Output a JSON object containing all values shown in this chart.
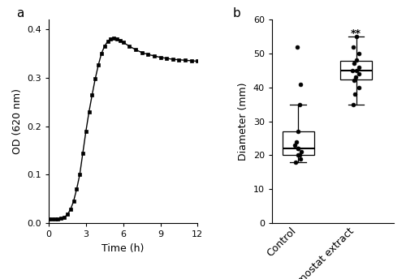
{
  "panel_a": {
    "xlabel": "Time (h)",
    "ylabel": "OD (620 nm)",
    "xlim": [
      0,
      12
    ],
    "ylim": [
      0,
      0.4
    ],
    "yticks": [
      0.0,
      0.1,
      0.2,
      0.3,
      0.4
    ],
    "xticks": [
      0,
      3,
      6,
      9,
      12
    ],
    "time_points": [
      0,
      0.25,
      0.5,
      0.75,
      1.0,
      1.25,
      1.5,
      1.75,
      2.0,
      2.25,
      2.5,
      2.75,
      3.0,
      3.25,
      3.5,
      3.75,
      4.0,
      4.25,
      4.5,
      4.75,
      5.0,
      5.25,
      5.5,
      5.75,
      6.0,
      6.5,
      7.0,
      7.5,
      8.0,
      8.5,
      9.0,
      9.5,
      10.0,
      10.5,
      11.0,
      11.5,
      12.0
    ],
    "od_values": [
      0.008,
      0.008,
      0.008,
      0.009,
      0.01,
      0.012,
      0.018,
      0.028,
      0.045,
      0.07,
      0.1,
      0.145,
      0.19,
      0.23,
      0.265,
      0.298,
      0.326,
      0.35,
      0.365,
      0.375,
      0.38,
      0.382,
      0.38,
      0.377,
      0.373,
      0.365,
      0.358,
      0.352,
      0.348,
      0.345,
      0.342,
      0.34,
      0.338,
      0.337,
      0.336,
      0.335,
      0.334
    ],
    "marker": "s",
    "markersize": 3.5,
    "linecolor": "#000000",
    "linewidth": 1.0
  },
  "panel_b": {
    "xlabel_control": "Control",
    "xlabel_chemostat": "Chemostat extract",
    "ylabel": "Diameter (mm)",
    "ylim": [
      0,
      60
    ],
    "yticks": [
      0,
      10,
      20,
      30,
      40,
      50,
      60
    ],
    "significance": "**",
    "control_data": [
      18,
      19,
      20,
      20,
      21,
      22,
      22,
      23,
      24,
      27,
      35,
      41,
      52
    ],
    "chemostat_data": [
      35,
      38,
      40,
      42,
      43,
      44,
      45,
      45,
      46,
      47,
      48,
      50,
      52,
      55
    ],
    "box_color": "#ffffff",
    "dot_color": "#000000",
    "dot_size": 12
  },
  "label_fontsize": 9,
  "tick_fontsize": 8,
  "panel_label_fontsize": 11
}
